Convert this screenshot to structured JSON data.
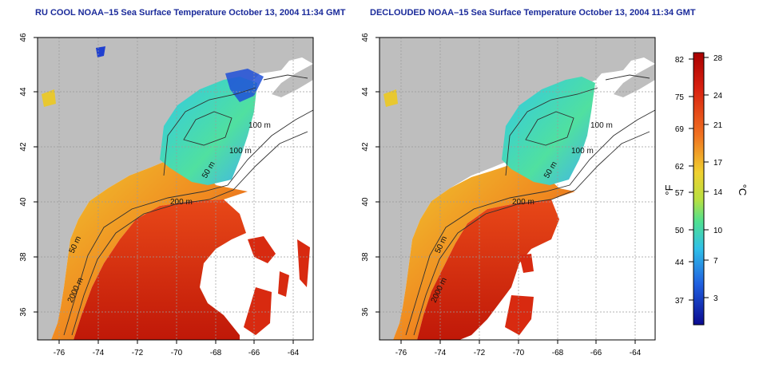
{
  "maps": [
    {
      "title": "RU COOL NOAA–15 Sea Surface Temperature October 13, 2004 11:34 GMT",
      "y_ticks": [
        "36",
        "38",
        "40",
        "42",
        "44",
        "46"
      ],
      "x_ticks": [
        "-76",
        "-74",
        "-72",
        "-70",
        "-68",
        "-66",
        "-64"
      ],
      "contour_labels": [
        "100 m",
        "100 m",
        "50 m",
        "200 m",
        "50 m",
        "2000 m"
      ]
    },
    {
      "title": "DECLOUDED NOAA–15 Sea Surface Temperature October 13, 2004 11:34 GMT",
      "y_ticks": [
        "36",
        "38",
        "40",
        "42",
        "44",
        "46"
      ],
      "x_ticks": [
        "-76",
        "-74",
        "-72",
        "-70",
        "-68",
        "-66",
        "-64"
      ],
      "contour_labels": [
        "100 m",
        "100 m",
        "50 m",
        "200 m",
        "50 m",
        "2000 m"
      ]
    }
  ],
  "colorbar": {
    "fahrenheit_ticks": [
      "82",
      "75",
      "69",
      "62",
      "57",
      "50",
      "44",
      "37"
    ],
    "celsius_ticks": [
      "28",
      "24",
      "21",
      "17",
      "14",
      "10",
      "7",
      "3"
    ],
    "f_label": "°F",
    "c_label": "°C",
    "colors": [
      "#b00000",
      "#e03010",
      "#f08020",
      "#f0d030",
      "#c0e040",
      "#40e0a0",
      "#30b0f0",
      "#2050e0",
      "#1010a0"
    ]
  },
  "chart_data": [
    {
      "type": "heatmap",
      "title": "RU COOL NOAA–15 Sea Surface Temperature October 13, 2004 11:34 GMT",
      "xlim": [
        -77,
        -63
      ],
      "ylim": [
        35,
        46
      ],
      "x_ticks": [
        -76,
        -74,
        -72,
        -70,
        -68,
        -66,
        -64
      ],
      "y_ticks": [
        36,
        38,
        40,
        42,
        44,
        46
      ],
      "grid": true,
      "value_range_f": [
        34,
        84
      ]
    },
    {
      "type": "heatmap",
      "title": "DECLOUDED NOAA–15 Sea Surface Temperature October 13, 2004 11:34 GMT",
      "xlim": [
        -77,
        -63
      ],
      "ylim": [
        35,
        46
      ],
      "x_ticks": [
        -76,
        -74,
        -72,
        -70,
        -68,
        -66,
        -64
      ],
      "y_ticks": [
        36,
        38,
        40,
        42,
        44,
        46
      ],
      "grid": true,
      "value_range_f": [
        34,
        84
      ]
    }
  ]
}
